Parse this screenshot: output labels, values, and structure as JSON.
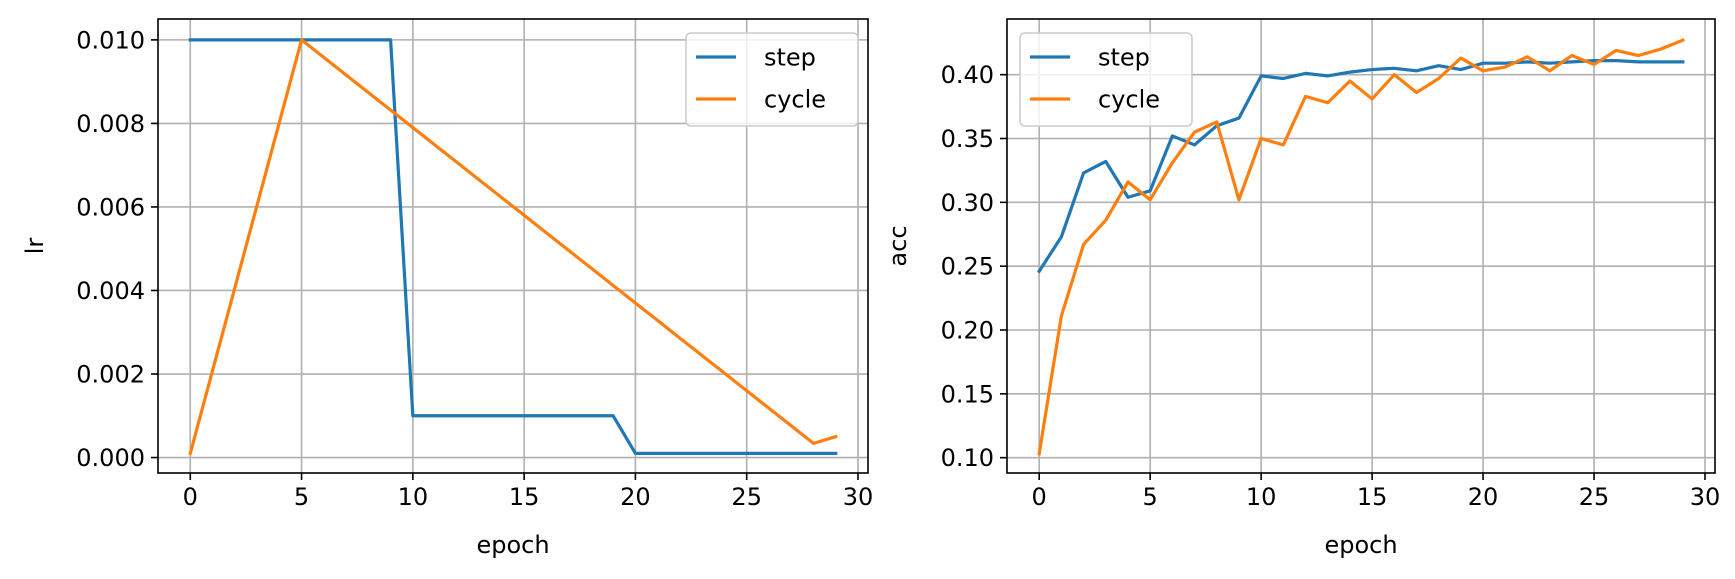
{
  "chart_data": [
    {
      "type": "line",
      "title": "",
      "xlabel": "epoch",
      "ylabel": "lr",
      "xlim": [
        -1.45,
        30.45
      ],
      "ylim": [
        -0.00037,
        0.0105
      ],
      "xticks": [
        0,
        5,
        10,
        15,
        20,
        25,
        30
      ],
      "yticks": [
        0.0,
        0.002,
        0.004,
        0.006,
        0.008,
        0.01
      ],
      "ytick_labels": [
        "0.000",
        "0.002",
        "0.004",
        "0.006",
        "0.008",
        "0.010"
      ],
      "grid": true,
      "legend": "upper right",
      "x": [
        0,
        1,
        2,
        3,
        4,
        5,
        6,
        7,
        8,
        9,
        10,
        11,
        12,
        13,
        14,
        15,
        16,
        17,
        18,
        19,
        20,
        21,
        22,
        23,
        24,
        25,
        26,
        27,
        28,
        29
      ],
      "series": [
        {
          "name": "step",
          "color": "#1f77b4",
          "values": [
            0.01,
            0.01,
            0.01,
            0.01,
            0.01,
            0.01,
            0.01,
            0.01,
            0.01,
            0.01,
            0.001,
            0.001,
            0.001,
            0.001,
            0.001,
            0.001,
            0.001,
            0.001,
            0.001,
            0.001,
            0.0001,
            0.0001,
            0.0001,
            0.0001,
            0.0001,
            0.0001,
            0.0001,
            0.0001,
            0.0001,
            0.0001
          ]
        },
        {
          "name": "cycle",
          "color": "#ff7f0e",
          "values": [
            0.0001,
            0.00208,
            0.00406,
            0.00604,
            0.00802,
            0.01,
            0.00958,
            0.00916,
            0.00874,
            0.00832,
            0.0079,
            0.00748,
            0.00706,
            0.00664,
            0.00622,
            0.0058,
            0.00538,
            0.00496,
            0.00454,
            0.00412,
            0.0037,
            0.00328,
            0.00286,
            0.00244,
            0.00202,
            0.0016,
            0.00118,
            0.00076,
            0.00034,
            0.0005
          ]
        }
      ]
    },
    {
      "type": "line",
      "title": "",
      "xlabel": "epoch",
      "ylabel": "acc",
      "xlim": [
        -1.45,
        30.45
      ],
      "ylim": [
        0.088,
        0.4436
      ],
      "xticks": [
        0,
        5,
        10,
        15,
        20,
        25,
        30
      ],
      "yticks": [
        0.1,
        0.15,
        0.2,
        0.25,
        0.3,
        0.35,
        0.4
      ],
      "ytick_labels": [
        "0.10",
        "0.15",
        "0.20",
        "0.25",
        "0.30",
        "0.35",
        "0.40"
      ],
      "grid": true,
      "legend": "upper left",
      "x": [
        0,
        1,
        2,
        3,
        4,
        5,
        6,
        7,
        8,
        9,
        10,
        11,
        12,
        13,
        14,
        15,
        16,
        17,
        18,
        19,
        20,
        21,
        22,
        23,
        24,
        25,
        26,
        27,
        28,
        29
      ],
      "series": [
        {
          "name": "step",
          "color": "#1f77b4",
          "values": [
            0.246,
            0.273,
            0.323,
            0.332,
            0.304,
            0.309,
            0.352,
            0.345,
            0.36,
            0.366,
            0.399,
            0.397,
            0.401,
            0.399,
            0.402,
            0.404,
            0.405,
            0.403,
            0.407,
            0.404,
            0.409,
            0.409,
            0.41,
            0.409,
            0.41,
            0.411,
            0.411,
            0.41,
            0.41,
            0.41
          ]
        },
        {
          "name": "cycle",
          "color": "#ff7f0e",
          "values": [
            0.103,
            0.211,
            0.267,
            0.286,
            0.316,
            0.302,
            0.331,
            0.355,
            0.363,
            0.302,
            0.35,
            0.345,
            0.383,
            0.378,
            0.395,
            0.381,
            0.4,
            0.386,
            0.397,
            0.413,
            0.403,
            0.406,
            0.414,
            0.403,
            0.415,
            0.408,
            0.419,
            0.415,
            0.42,
            0.427
          ]
        }
      ]
    }
  ]
}
